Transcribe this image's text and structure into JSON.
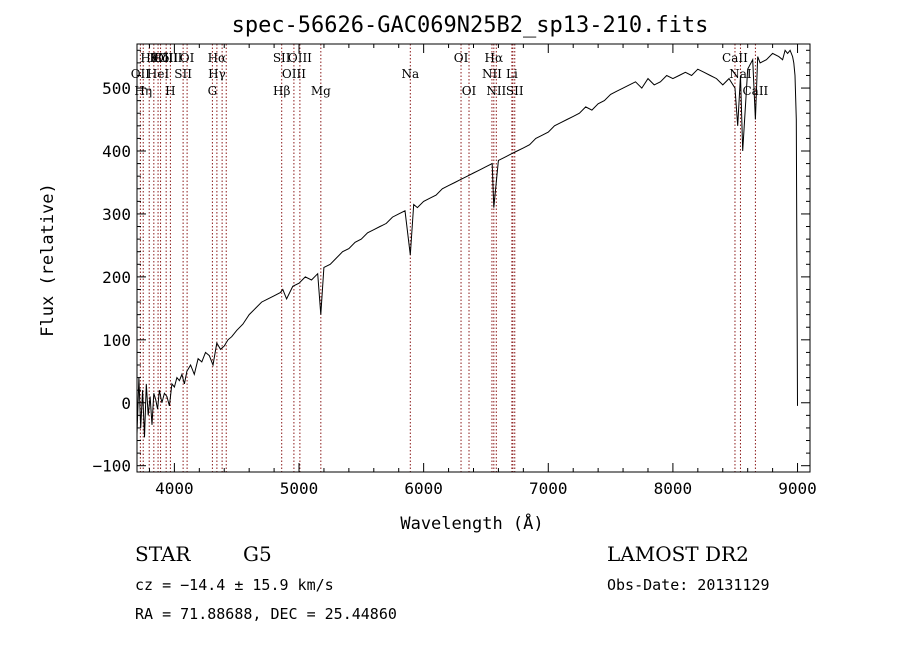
{
  "chart_data": {
    "type": "line",
    "title": "spec-56626-GAC069N25B2_sp13-210.fits",
    "xlabel": "Wavelength (Å)",
    "ylabel": "Flux (relative)",
    "xlim": [
      3700,
      9100
    ],
    "ylim": [
      -110,
      570
    ],
    "x_ticks": [
      {
        "value": 4000,
        "label": "4000"
      },
      {
        "value": 5000,
        "label": "5000"
      },
      {
        "value": 6000,
        "label": "6000"
      },
      {
        "value": 7000,
        "label": "7000"
      },
      {
        "value": 8000,
        "label": "8000"
      },
      {
        "value": 9000,
        "label": "9000"
      }
    ],
    "y_ticks": [
      {
        "value": -100,
        "label": "−100"
      },
      {
        "value": 0,
        "label": "0"
      },
      {
        "value": 100,
        "label": "100"
      },
      {
        "value": 200,
        "label": "200"
      },
      {
        "value": 300,
        "label": "300"
      },
      {
        "value": 400,
        "label": "400"
      },
      {
        "value": 500,
        "label": "500"
      }
    ],
    "line_color": "#000000",
    "marker_color": "#8b1a1a",
    "lines": [
      {
        "wl": 3798,
        "label": "Hθ",
        "row": 0
      },
      {
        "wl": 3835,
        "label": "K",
        "row": 0
      },
      {
        "wl": 3889,
        "label": "Hδ",
        "row": 0
      },
      {
        "wl": 3934,
        "label": "OIII",
        "row": 0
      },
      {
        "wl": 3968,
        "label": "OIII",
        "row": 0
      },
      {
        "wl": 4102,
        "label": "OI",
        "row": 0
      },
      {
        "wl": 4341,
        "label": "Hα",
        "row": 0
      },
      {
        "wl": 4861,
        "label": "SII",
        "row": 0
      },
      {
        "wl": 3727,
        "label": "OII",
        "row": 1
      },
      {
        "wl": 3869,
        "label": "HeI",
        "row": 1
      },
      {
        "wl": 4070,
        "label": "SII",
        "row": 1
      },
      {
        "wl": 4341,
        "label": "Hγ",
        "row": 1
      },
      {
        "wl": 4959,
        "label": "OIII",
        "row": 1
      },
      {
        "wl": 5893,
        "label": "Na",
        "row": 1
      },
      {
        "wl": 6548,
        "label": "NII",
        "row": 1
      },
      {
        "wl": 6708,
        "label": "Li",
        "row": 1
      },
      {
        "wl": 8542,
        "label": "NaI",
        "row": 1
      },
      {
        "wl": 3750,
        "label": "Hη",
        "row": 2
      },
      {
        "wl": 3968,
        "label": "H",
        "row": 2
      },
      {
        "wl": 4305,
        "label": "G",
        "row": 2
      },
      {
        "wl": 4861,
        "label": "Hβ",
        "row": 2
      },
      {
        "wl": 5175,
        "label": "Mg",
        "row": 2
      },
      {
        "wl": 6364,
        "label": "OI",
        "row": 2
      },
      {
        "wl": 6583,
        "label": "NII",
        "row": 2
      },
      {
        "wl": 6731,
        "label": "SII",
        "row": 2
      },
      {
        "wl": 8662,
        "label": "CaII",
        "row": 2
      },
      {
        "wl": 5007,
        "label": "OIII",
        "row": 0
      },
      {
        "wl": 6300,
        "label": "OI",
        "row": 0
      },
      {
        "wl": 6563,
        "label": "Hα",
        "row": 0
      },
      {
        "wl": 8498,
        "label": "CaII",
        "row": 0
      }
    ],
    "markers_only": [
      4383,
      4416,
      6716,
      8662,
      8542,
      8498
    ],
    "series": [
      {
        "x": [
          3700,
          3715,
          3730,
          3745,
          3760,
          3775,
          3790,
          3805,
          3820,
          3835,
          3850,
          3865,
          3880,
          3900,
          3920,
          3940,
          3960,
          3980,
          4000,
          4020,
          4040,
          4060,
          4080,
          4100,
          4130,
          4160,
          4190,
          4220,
          4250,
          4280,
          4310,
          4340,
          4370,
          4400,
          4430,
          4460,
          4500,
          4550,
          4600,
          4650,
          4700,
          4750,
          4800,
          4850,
          4870,
          4900,
          4950,
          5000,
          5050,
          5100,
          5150,
          5175,
          5200,
          5250,
          5300,
          5350,
          5400,
          5450,
          5500,
          5550,
          5600,
          5650,
          5700,
          5750,
          5800,
          5850,
          5893,
          5920,
          5950,
          6000,
          6050,
          6100,
          6150,
          6200,
          6250,
          6300,
          6350,
          6400,
          6450,
          6500,
          6550,
          6563,
          6600,
          6650,
          6700,
          6750,
          6800,
          6850,
          6900,
          6950,
          7000,
          7050,
          7100,
          7150,
          7200,
          7250,
          7300,
          7350,
          7400,
          7450,
          7500,
          7550,
          7600,
          7650,
          7700,
          7750,
          7800,
          7850,
          7900,
          7950,
          8000,
          8050,
          8100,
          8150,
          8200,
          8250,
          8300,
          8350,
          8400,
          8450,
          8498,
          8520,
          8542,
          8560,
          8600,
          8640,
          8662,
          8680,
          8700,
          8750,
          8800,
          8850,
          8880,
          8900,
          8920,
          8940,
          8960,
          8970,
          8980,
          8990,
          9000
        ],
        "y": [
          -50,
          40,
          -40,
          20,
          -55,
          30,
          -20,
          10,
          -35,
          15,
          5,
          -10,
          20,
          0,
          15,
          10,
          -5,
          30,
          25,
          40,
          35,
          45,
          30,
          50,
          60,
          45,
          70,
          65,
          80,
          75,
          60,
          95,
          85,
          90,
          100,
          105,
          115,
          125,
          140,
          150,
          160,
          165,
          170,
          175,
          180,
          165,
          185,
          190,
          200,
          195,
          205,
          140,
          215,
          220,
          230,
          240,
          245,
          255,
          260,
          270,
          275,
          280,
          285,
          295,
          300,
          305,
          235,
          315,
          310,
          320,
          325,
          330,
          340,
          345,
          350,
          355,
          360,
          365,
          370,
          375,
          380,
          310,
          385,
          390,
          395,
          400,
          405,
          410,
          420,
          425,
          430,
          440,
          445,
          450,
          455,
          460,
          470,
          465,
          475,
          480,
          490,
          495,
          500,
          505,
          510,
          500,
          515,
          505,
          510,
          520,
          515,
          520,
          525,
          520,
          530,
          525,
          520,
          515,
          505,
          515,
          500,
          440,
          520,
          400,
          530,
          545,
          450,
          550,
          540,
          545,
          555,
          550,
          545,
          560,
          555,
          560,
          550,
          540,
          520,
          450,
          -5
        ]
      }
    ]
  },
  "info": {
    "class": "STAR",
    "subclass": "G5",
    "survey": "LAMOST DR2",
    "cz": "cz = −14.4 ± 15.9 km/s",
    "obs_date": "Obs-Date: 20131129",
    "coords": "RA =  71.88688, DEC =  25.44860"
  }
}
